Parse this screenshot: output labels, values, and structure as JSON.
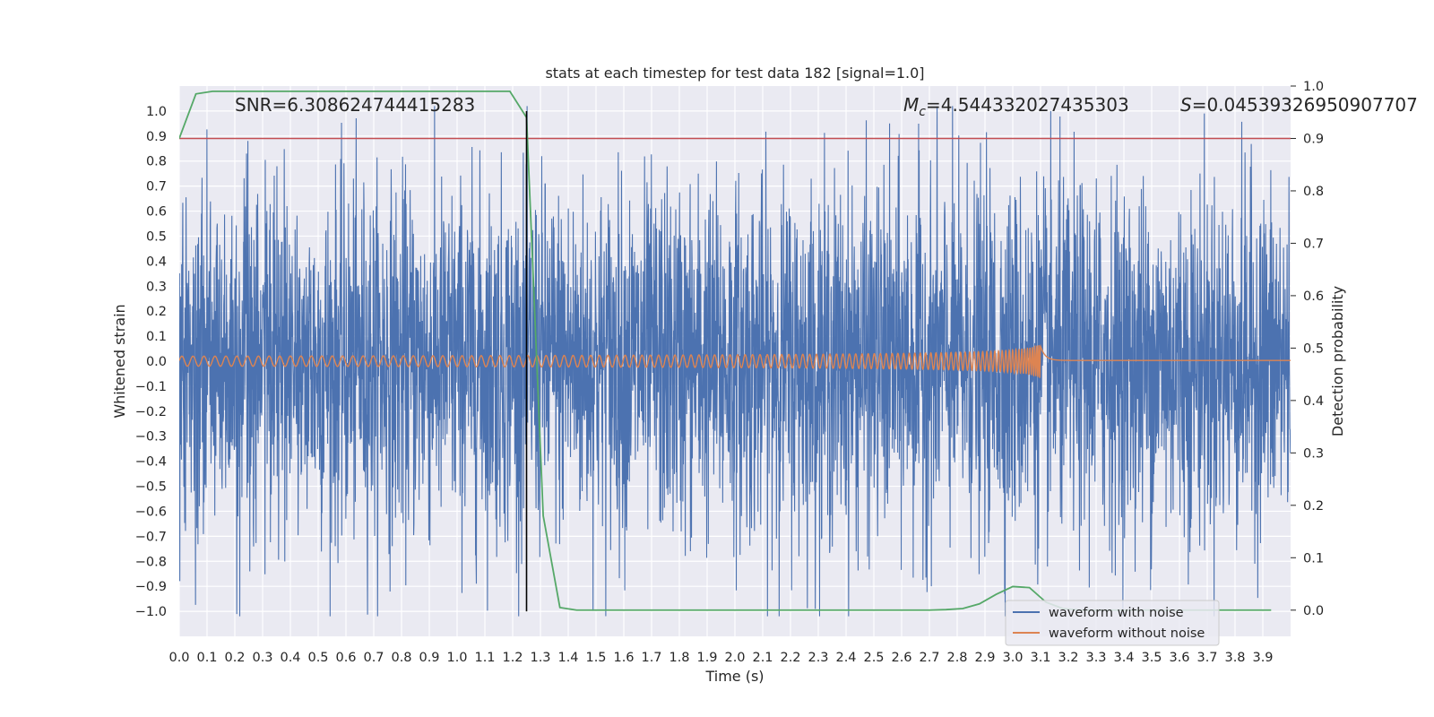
{
  "chart_data": {
    "type": "line",
    "title": "stats at each timestep for test data 182 [signal=1.0]",
    "xlabel": "Time (s)",
    "ylabel": "Whitened strain",
    "y2label": "Detection probability",
    "xlim": [
      0.0,
      4.0
    ],
    "ylim": [
      -1.1,
      1.1
    ],
    "y2lim": [
      -0.05,
      1.0
    ],
    "grid": true,
    "x_ticks": [
      "0.0",
      "0.1",
      "0.2",
      "0.3",
      "0.4",
      "0.5",
      "0.6",
      "0.7",
      "0.8",
      "0.9",
      "1.0",
      "1.1",
      "1.2",
      "1.3",
      "1.4",
      "1.5",
      "1.6",
      "1.7",
      "1.8",
      "1.9",
      "2.0",
      "2.1",
      "2.2",
      "2.3",
      "2.4",
      "2.5",
      "2.6",
      "2.7",
      "2.8",
      "2.9",
      "3.0",
      "3.1",
      "3.2",
      "3.3",
      "3.4",
      "3.5",
      "3.6",
      "3.7",
      "3.8",
      "3.9"
    ],
    "y_ticks": [
      "1.0",
      "0.9",
      "0.8",
      "0.7",
      "0.6",
      "0.5",
      "0.4",
      "0.3",
      "0.2",
      "0.1",
      "0.0",
      "−0.1",
      "−0.2",
      "−0.3",
      "−0.4",
      "−0.5",
      "−0.6",
      "−0.7",
      "−0.8",
      "−0.9",
      "−1.0"
    ],
    "y2_ticks": [
      "1.0",
      "0.9",
      "0.8",
      "0.7",
      "0.6",
      "0.5",
      "0.4",
      "0.3",
      "0.2",
      "0.1",
      "0.0"
    ],
    "annotations": {
      "snr": "SNR=6.308624744415283",
      "mc_symbol": "M",
      "mc_sub": "c",
      "mc_value": "=4.544332027435303",
      "s_symbol": "S",
      "s_value": "=0.04539326950907707"
    },
    "threshold": {
      "y2": 0.9,
      "color": "#c44e52"
    },
    "marker_time": 1.25,
    "legend": {
      "position": "lower-right",
      "items": [
        {
          "label": "waveform with noise",
          "color": "#4c72b0"
        },
        {
          "label": "waveform without noise",
          "color": "#dd8452"
        }
      ]
    },
    "series": [
      {
        "name": "waveform with noise",
        "color": "#4c72b0",
        "kind": "noise",
        "duration": 4.0,
        "sample_rate": 1024,
        "envelope": 0.35
      },
      {
        "name": "waveform without noise",
        "color": "#dd8452",
        "kind": "chirp",
        "start_amplitude": 0.02,
        "merger_time": 3.1,
        "peak_amplitude": 0.16
      },
      {
        "name": "detection probability",
        "color": "#55a868",
        "axis": "y2",
        "x": [
          0.0,
          0.06,
          0.12,
          1.19,
          1.25,
          1.31,
          1.37,
          1.43,
          2.7,
          2.76,
          2.82,
          2.88,
          2.94,
          3.0,
          3.06,
          3.12,
          3.18,
          3.24,
          3.93
        ],
        "y": [
          0.9,
          0.985,
          0.99,
          0.99,
          0.94,
          0.18,
          0.005,
          0.0,
          0.0,
          0.001,
          0.003,
          0.012,
          0.03,
          0.045,
          0.043,
          0.015,
          0.003,
          0.0,
          0.0
        ]
      }
    ]
  }
}
